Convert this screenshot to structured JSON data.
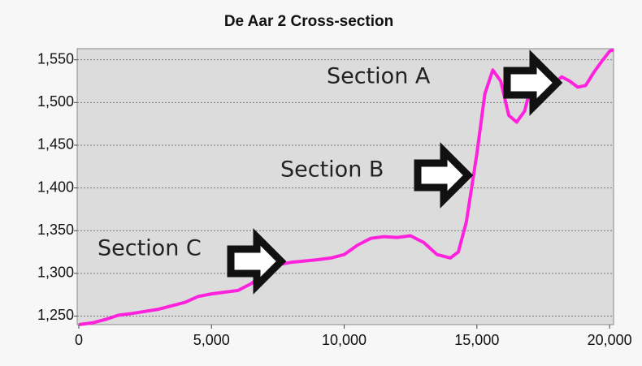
{
  "chart_data": {
    "type": "line",
    "title": "De Aar 2 Cross-section",
    "annotations": [
      "Section A",
      "Section B",
      "Section C"
    ],
    "xlim": [
      -60,
      20150
    ],
    "ylim": [
      1240,
      1563
    ],
    "xticks": [
      0,
      {
        "value": 5000,
        "label": "5,000"
      },
      {
        "value": 10000,
        "label": "10,000"
      },
      {
        "value": 15000,
        "label": "15,000"
      },
      {
        "value": 20000,
        "label": "20,000"
      }
    ],
    "yticks": [
      {
        "value": 1250,
        "label": "1,250"
      },
      {
        "value": 1300,
        "label": "1,300"
      },
      {
        "value": 1350,
        "label": "1,350"
      },
      {
        "value": 1400,
        "label": "1,400"
      },
      {
        "value": 1450,
        "label": "1,450"
      },
      {
        "value": 1500,
        "label": "1,500"
      },
      {
        "value": 1550,
        "label": "1,550"
      }
    ],
    "grid": true,
    "x": [
      0,
      500,
      1000,
      1500,
      2000,
      3000,
      4000,
      4500,
      5000,
      6000,
      6500,
      7000,
      7500,
      8000,
      9000,
      9500,
      10000,
      10500,
      11000,
      11500,
      12000,
      12500,
      13000,
      13500,
      14000,
      14300,
      14600,
      15000,
      15300,
      15600,
      15900,
      16200,
      16500,
      16800,
      17000,
      17300,
      17600,
      17800,
      18200,
      18500,
      18800,
      19100,
      19400,
      19700,
      20000,
      20150
    ],
    "series": [
      {
        "color": "#ff22dd",
        "values": [
          1240,
          1242,
          1246,
          1251,
          1253,
          1258,
          1266,
          1273,
          1276,
          1280,
          1288,
          1300,
          1310,
          1313,
          1316,
          1318,
          1322,
          1333,
          1341,
          1343,
          1342,
          1344,
          1336,
          1322,
          1318,
          1325,
          1360,
          1440,
          1510,
          1538,
          1525,
          1485,
          1477,
          1490,
          1515,
          1525,
          1525,
          1520,
          1530,
          1525,
          1518,
          1520,
          1535,
          1548,
          1560,
          1562
        ]
      }
    ]
  }
}
